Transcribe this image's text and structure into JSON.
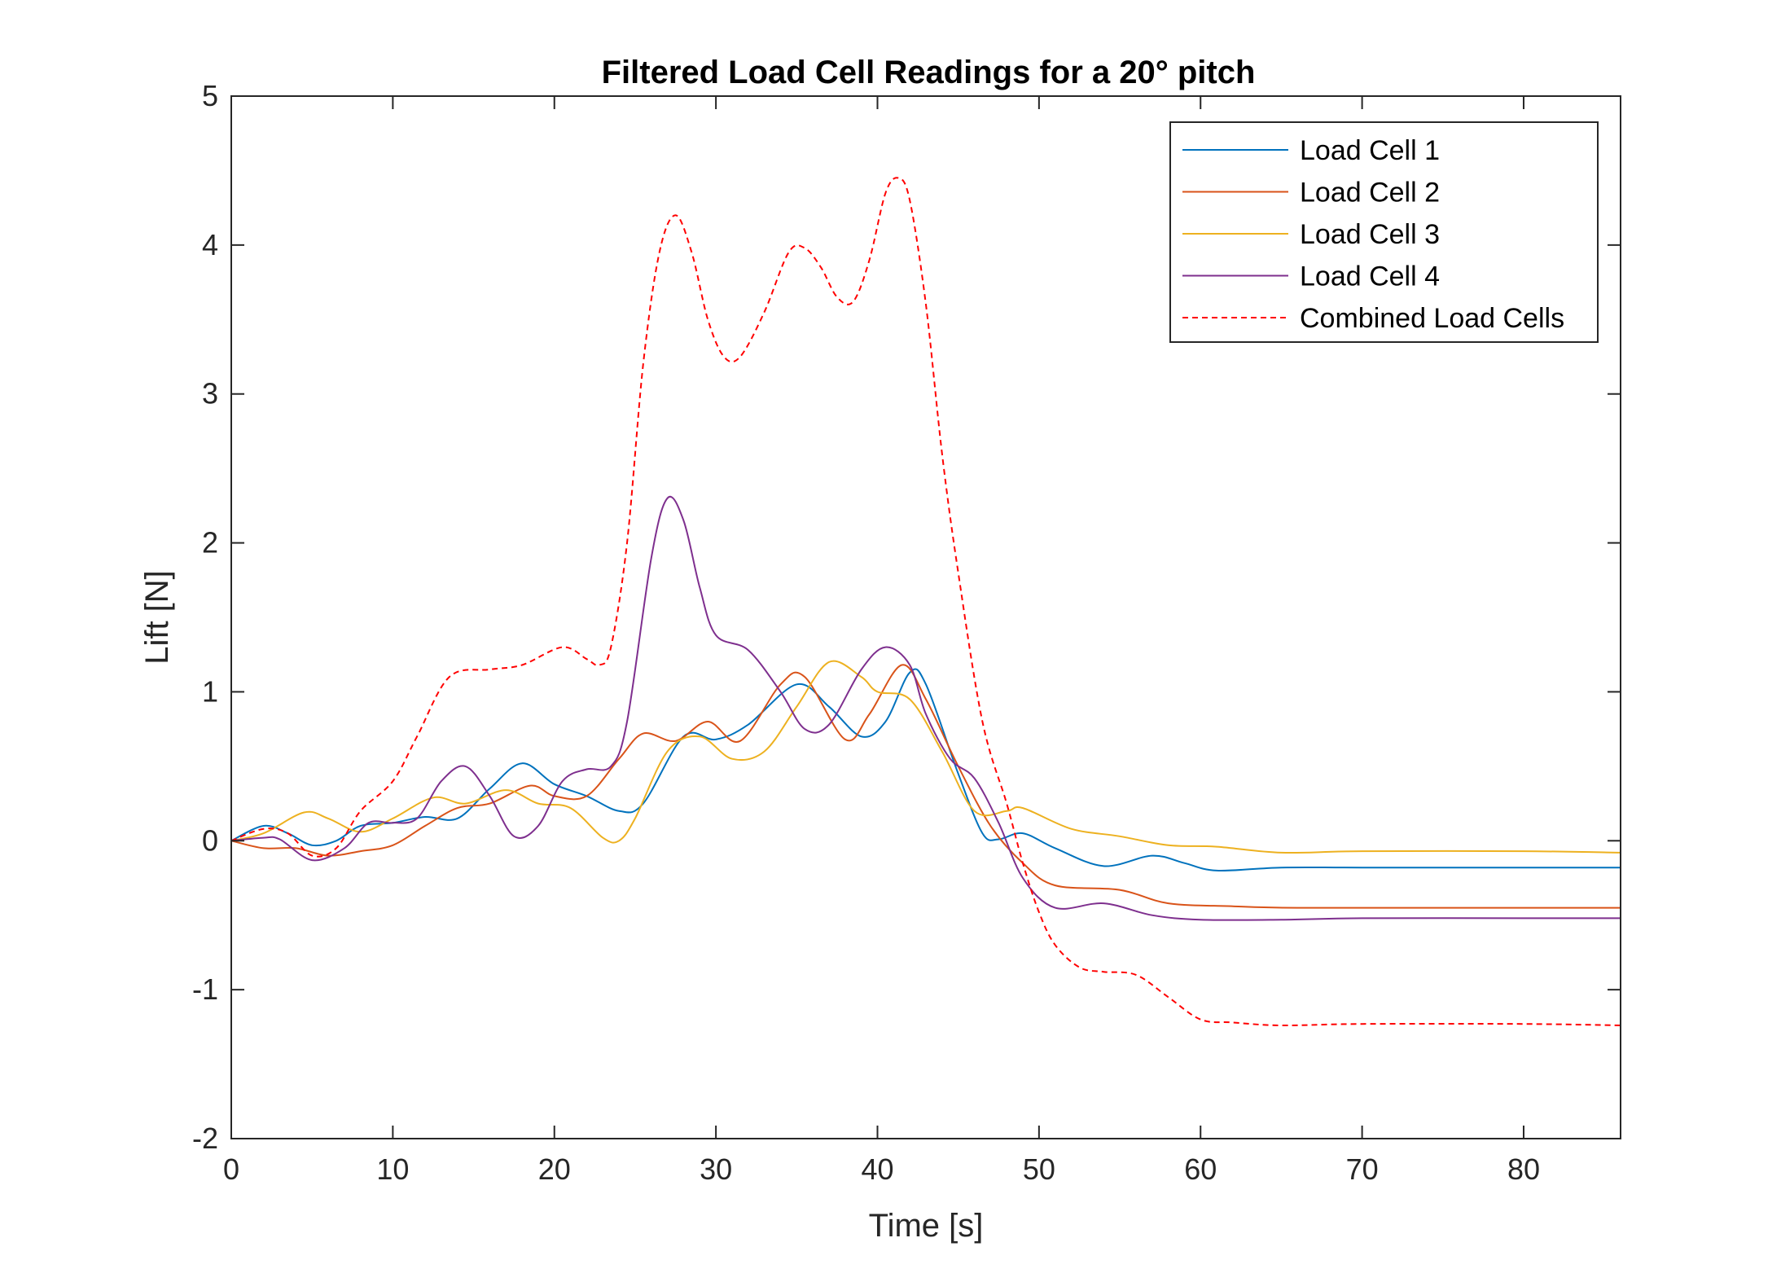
{
  "chart_data": {
    "type": "line",
    "title": "Filtered Load Cell Readings for a 20° pitch",
    "xlabel": "Time [s]",
    "ylabel": "Lift [N]",
    "xlim": [
      0,
      86
    ],
    "ylim": [
      -2,
      5
    ],
    "xticks": [
      0,
      10,
      20,
      30,
      40,
      50,
      60,
      70,
      80
    ],
    "yticks": [
      -2,
      -1,
      0,
      1,
      2,
      3,
      4,
      5
    ],
    "grid": false,
    "legend_position": "top-right",
    "series": [
      {
        "name": "Load Cell 1",
        "color": "#0072BD",
        "style": "solid",
        "points": [
          [
            0,
            0
          ],
          [
            2,
            0.1
          ],
          [
            3.5,
            0.05
          ],
          [
            5,
            -0.03
          ],
          [
            6.5,
            0
          ],
          [
            8,
            0.1
          ],
          [
            10,
            0.12
          ],
          [
            12,
            0.16
          ],
          [
            14,
            0.15
          ],
          [
            16,
            0.35
          ],
          [
            18,
            0.52
          ],
          [
            20,
            0.38
          ],
          [
            22,
            0.3
          ],
          [
            24,
            0.2
          ],
          [
            25.5,
            0.25
          ],
          [
            28,
            0.7
          ],
          [
            30,
            0.68
          ],
          [
            32,
            0.78
          ],
          [
            35,
            1.05
          ],
          [
            37,
            0.9
          ],
          [
            39,
            0.7
          ],
          [
            40.5,
            0.8
          ],
          [
            42,
            1.13
          ],
          [
            43,
            1.05
          ],
          [
            45,
            0.45
          ],
          [
            46.5,
            0.05
          ],
          [
            47.5,
            0.01
          ],
          [
            49,
            0.05
          ],
          [
            51,
            -0.05
          ],
          [
            54,
            -0.17
          ],
          [
            57,
            -0.1
          ],
          [
            59,
            -0.15
          ],
          [
            61,
            -0.2
          ],
          [
            65,
            -0.18
          ],
          [
            70,
            -0.18
          ],
          [
            80,
            -0.18
          ],
          [
            86,
            -0.18
          ]
        ]
      },
      {
        "name": "Load Cell 2",
        "color": "#D95319",
        "style": "solid",
        "points": [
          [
            0,
            0
          ],
          [
            2,
            -0.05
          ],
          [
            4,
            -0.05
          ],
          [
            6,
            -0.1
          ],
          [
            8,
            -0.07
          ],
          [
            10,
            -0.03
          ],
          [
            12,
            0.1
          ],
          [
            14,
            0.22
          ],
          [
            16,
            0.25
          ],
          [
            18.5,
            0.37
          ],
          [
            20,
            0.3
          ],
          [
            22,
            0.3
          ],
          [
            24,
            0.55
          ],
          [
            25.5,
            0.72
          ],
          [
            27.5,
            0.67
          ],
          [
            29.5,
            0.8
          ],
          [
            31.5,
            0.67
          ],
          [
            34,
            1.05
          ],
          [
            35.5,
            1.1
          ],
          [
            38,
            0.68
          ],
          [
            39.5,
            0.85
          ],
          [
            41.5,
            1.18
          ],
          [
            43,
            0.95
          ],
          [
            45,
            0.5
          ],
          [
            47,
            0.1
          ],
          [
            49,
            -0.15
          ],
          [
            51,
            -0.3
          ],
          [
            55,
            -0.33
          ],
          [
            58,
            -0.42
          ],
          [
            62,
            -0.44
          ],
          [
            66,
            -0.45
          ],
          [
            75,
            -0.45
          ],
          [
            86,
            -0.45
          ]
        ]
      },
      {
        "name": "Load Cell 3",
        "color": "#EDB120",
        "style": "solid",
        "points": [
          [
            0,
            0
          ],
          [
            2,
            0.05
          ],
          [
            4.5,
            0.19
          ],
          [
            6,
            0.15
          ],
          [
            8,
            0.06
          ],
          [
            10,
            0.15
          ],
          [
            12.5,
            0.29
          ],
          [
            14.5,
            0.25
          ],
          [
            17,
            0.34
          ],
          [
            19,
            0.25
          ],
          [
            21,
            0.22
          ],
          [
            23,
            0.02
          ],
          [
            24,
            0
          ],
          [
            25,
            0.15
          ],
          [
            27,
            0.6
          ],
          [
            29,
            0.7
          ],
          [
            31,
            0.55
          ],
          [
            33,
            0.6
          ],
          [
            35,
            0.9
          ],
          [
            37,
            1.2
          ],
          [
            39,
            1.1
          ],
          [
            40,
            1.0
          ],
          [
            42,
            0.95
          ],
          [
            44,
            0.6
          ],
          [
            46,
            0.2
          ],
          [
            48,
            0.2
          ],
          [
            49,
            0.22
          ],
          [
            52,
            0.08
          ],
          [
            55,
            0.03
          ],
          [
            58,
            -0.03
          ],
          [
            61,
            -0.04
          ],
          [
            65,
            -0.08
          ],
          [
            70,
            -0.07
          ],
          [
            80,
            -0.07
          ],
          [
            86,
            -0.08
          ]
        ]
      },
      {
        "name": "Load Cell 4",
        "color": "#7E2F8E",
        "style": "solid",
        "points": [
          [
            0,
            0
          ],
          [
            2,
            0.02
          ],
          [
            3,
            0.01
          ],
          [
            5,
            -0.13
          ],
          [
            7,
            -0.05
          ],
          [
            8.5,
            0.12
          ],
          [
            10,
            0.12
          ],
          [
            11.5,
            0.15
          ],
          [
            13,
            0.4
          ],
          [
            14.5,
            0.5
          ],
          [
            16,
            0.3
          ],
          [
            17.5,
            0.03
          ],
          [
            19,
            0.1
          ],
          [
            20.5,
            0.4
          ],
          [
            22,
            0.48
          ],
          [
            23.5,
            0.5
          ],
          [
            24.5,
            0.8
          ],
          [
            26,
            1.9
          ],
          [
            27,
            2.3
          ],
          [
            28,
            2.15
          ],
          [
            29,
            1.7
          ],
          [
            30,
            1.38
          ],
          [
            32,
            1.28
          ],
          [
            34,
            1.0
          ],
          [
            35.5,
            0.75
          ],
          [
            37,
            0.78
          ],
          [
            39,
            1.15
          ],
          [
            40.5,
            1.3
          ],
          [
            42,
            1.18
          ],
          [
            43,
            0.85
          ],
          [
            44.5,
            0.55
          ],
          [
            46,
            0.42
          ],
          [
            47.5,
            0.12
          ],
          [
            49,
            -0.25
          ],
          [
            51,
            -0.45
          ],
          [
            54,
            -0.42
          ],
          [
            57,
            -0.5
          ],
          [
            60,
            -0.53
          ],
          [
            65,
            -0.53
          ],
          [
            70,
            -0.52
          ],
          [
            80,
            -0.52
          ],
          [
            86,
            -0.52
          ]
        ]
      },
      {
        "name": "Combined Load Cells",
        "color": "#FF0000",
        "style": "dashed",
        "points": [
          [
            0,
            0
          ],
          [
            2,
            0.08
          ],
          [
            3.5,
            0.05
          ],
          [
            5,
            -0.1
          ],
          [
            6.5,
            -0.05
          ],
          [
            8,
            0.2
          ],
          [
            10,
            0.4
          ],
          [
            11.5,
            0.7
          ],
          [
            13.5,
            1.1
          ],
          [
            16,
            1.15
          ],
          [
            18,
            1.18
          ],
          [
            20.5,
            1.3
          ],
          [
            22,
            1.22
          ],
          [
            22.8,
            1.18
          ],
          [
            23.5,
            1.3
          ],
          [
            24.5,
            2.0
          ],
          [
            25.5,
            3.2
          ],
          [
            26.5,
            3.95
          ],
          [
            27.5,
            4.2
          ],
          [
            28.5,
            3.95
          ],
          [
            29.5,
            3.5
          ],
          [
            30.5,
            3.25
          ],
          [
            31.5,
            3.25
          ],
          [
            33,
            3.55
          ],
          [
            34.5,
            3.95
          ],
          [
            35.5,
            3.98
          ],
          [
            36.5,
            3.85
          ],
          [
            37.5,
            3.65
          ],
          [
            38.5,
            3.62
          ],
          [
            39.5,
            3.9
          ],
          [
            40.5,
            4.35
          ],
          [
            41.3,
            4.45
          ],
          [
            42,
            4.3
          ],
          [
            43,
            3.6
          ],
          [
            44,
            2.6
          ],
          [
            45,
            1.8
          ],
          [
            46.5,
            0.8
          ],
          [
            48,
            0.25
          ],
          [
            49,
            -0.15
          ],
          [
            50,
            -0.48
          ],
          [
            51,
            -0.7
          ],
          [
            52.5,
            -0.85
          ],
          [
            54,
            -0.88
          ],
          [
            56,
            -0.9
          ],
          [
            58,
            -1.05
          ],
          [
            60,
            -1.2
          ],
          [
            62,
            -1.22
          ],
          [
            65,
            -1.24
          ],
          [
            70,
            -1.23
          ],
          [
            80,
            -1.23
          ],
          [
            86,
            -1.24
          ]
        ]
      }
    ]
  }
}
